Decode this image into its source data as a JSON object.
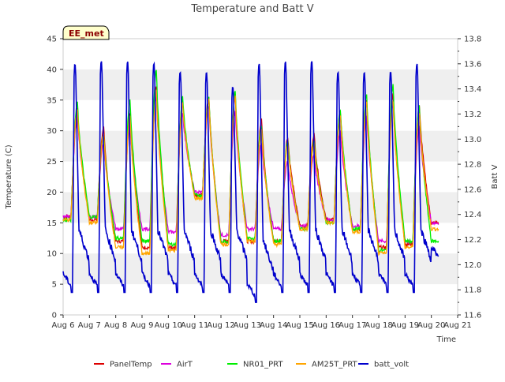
{
  "chart_data": {
    "type": "line",
    "title": "Temperature and Batt V",
    "xlabel": "Time",
    "ylabel": "Temperature (C)",
    "y2label": "Batt V",
    "ylim": [
      0,
      45
    ],
    "y2lim": [
      11.6,
      13.8
    ],
    "xlim": [
      "Aug 6",
      "Aug 21"
    ],
    "x_tick_labels": [
      "Aug 6",
      "Aug 7",
      "Aug 8",
      "Aug 9",
      "Aug 10",
      "Aug 11",
      "Aug 12",
      "Aug 13",
      "Aug 14",
      "Aug 15",
      "Aug 16",
      "Aug 17",
      "Aug 18",
      "Aug 19",
      "Aug 20",
      "Aug 21"
    ],
    "y_tick_labels": [
      "0",
      "5",
      "10",
      "15",
      "20",
      "25",
      "30",
      "35",
      "40",
      "45"
    ],
    "y2_tick_labels": [
      "11.6",
      "11.8",
      "12.0",
      "12.2",
      "12.4",
      "12.6",
      "12.8",
      "13.0",
      "13.2",
      "13.4",
      "13.6",
      "13.8"
    ],
    "grid": "horizontal bands",
    "legend_position": "bottom",
    "station_label": "EE_met",
    "daily_x": [
      "Aug 6",
      "Aug 7",
      "Aug 8",
      "Aug 9",
      "Aug 10",
      "Aug 11",
      "Aug 12",
      "Aug 13",
      "Aug 14",
      "Aug 15",
      "Aug 16",
      "Aug 17",
      "Aug 18",
      "Aug 19",
      "Aug 20"
    ],
    "series": [
      {
        "name": "PanelTemp",
        "color": "#dd0000",
        "axis": "left",
        "daily_max": [
          33.5,
          30.5,
          33,
          37,
          35,
          35.5,
          36,
          32,
          29,
          29.5,
          33,
          35,
          36,
          34,
          14
        ],
        "daily_min": [
          16,
          15.5,
          12,
          11,
          11,
          19.5,
          12,
          12,
          12,
          14.5,
          15.5,
          14,
          11,
          11.5,
          15
        ]
      },
      {
        "name": "AirT",
        "color": "#dd00dd",
        "axis": "left",
        "daily_max": [
          32.5,
          28,
          31,
          35.5,
          33,
          34,
          33,
          28,
          25,
          26,
          30,
          32.5,
          34.5,
          31,
          14
        ],
        "daily_min": [
          16,
          16,
          14,
          14,
          13.5,
          20,
          13,
          14,
          14,
          14.5,
          15.5,
          14.5,
          12,
          12,
          15
        ]
      },
      {
        "name": "NR01_PRT",
        "color": "#00ee00",
        "axis": "left",
        "daily_max": [
          34.5,
          29.5,
          35,
          40,
          35.5,
          35.5,
          36.5,
          31,
          28.5,
          28.5,
          33.5,
          36,
          37.5,
          34,
          12
        ],
        "daily_min": [
          15.5,
          16,
          12.5,
          12,
          11.5,
          19.5,
          12,
          12.5,
          12,
          14,
          15,
          14,
          10.5,
          12,
          12
        ]
      },
      {
        "name": "AM25T_PRT",
        "color": "#ffa500",
        "axis": "left",
        "daily_max": [
          33.5,
          29.5,
          32.5,
          36.5,
          34.5,
          35,
          35.5,
          30.5,
          28,
          28,
          32.5,
          34.5,
          35,
          33,
          14
        ],
        "daily_min": [
          15.5,
          15,
          11,
          10,
          10.5,
          19,
          11.5,
          12,
          11.5,
          14,
          15,
          13.5,
          10,
          11,
          14
        ]
      },
      {
        "name": "batt_volt",
        "color": "#0000cc",
        "axis": "right",
        "daily_max": [
          13.6,
          13.62,
          13.62,
          13.6,
          13.54,
          13.54,
          13.42,
          13.6,
          13.62,
          13.62,
          13.54,
          13.54,
          13.54,
          13.6,
          12.05
        ],
        "daily_min": [
          11.78,
          11.78,
          11.78,
          11.78,
          11.78,
          11.78,
          11.78,
          11.7,
          11.78,
          11.78,
          11.78,
          11.78,
          11.78,
          11.78,
          12.0
        ]
      }
    ]
  }
}
